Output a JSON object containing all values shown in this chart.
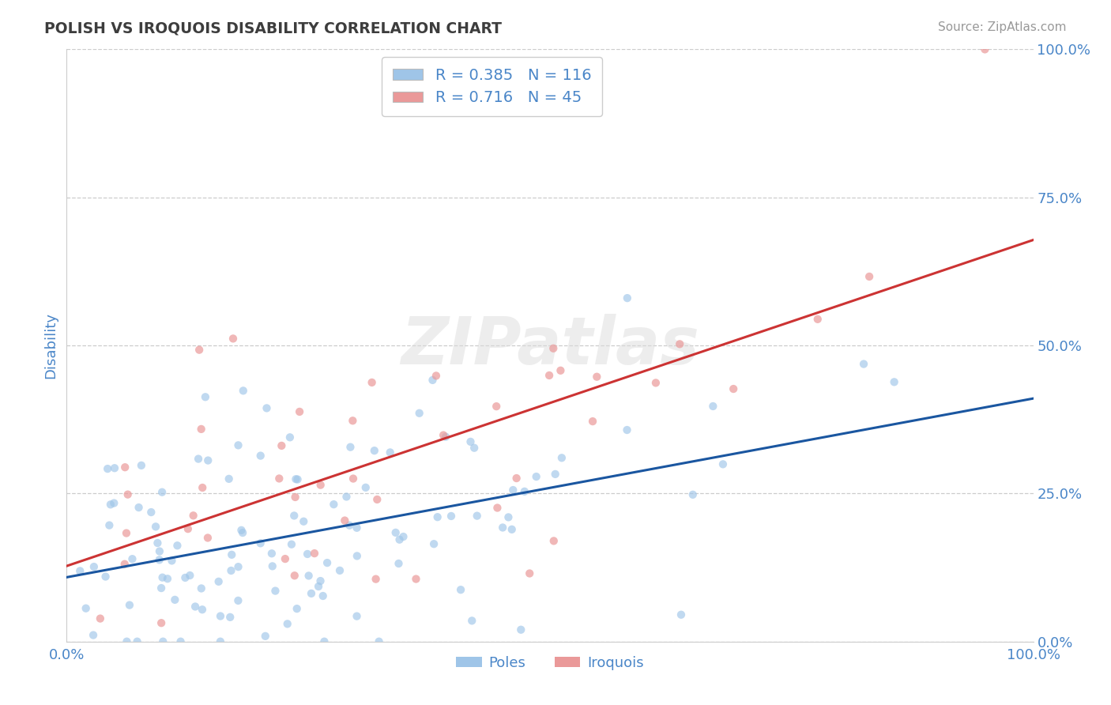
{
  "title": "POLISH VS IROQUOIS DISABILITY CORRELATION CHART",
  "source": "Source: ZipAtlas.com",
  "ylabel": "Disability",
  "xlim": [
    0.0,
    1.0
  ],
  "ylim": [
    0.0,
    1.0
  ],
  "yticks": [
    0.0,
    0.25,
    0.5,
    0.75,
    1.0
  ],
  "ytick_labels": [
    "0.0%",
    "25.0%",
    "50.0%",
    "75.0%",
    "100.0%"
  ],
  "xtick_labels": [
    "0.0%",
    "100.0%"
  ],
  "blue_scatter_color": "#9fc5e8",
  "pink_scatter_color": "#ea9999",
  "blue_line_color": "#1a56a0",
  "pink_line_color": "#cc3333",
  "blue_R": 0.385,
  "blue_N": 116,
  "pink_R": 0.716,
  "pink_N": 45,
  "watermark": "ZIPatlas",
  "title_color": "#3d3d3d",
  "tick_label_color": "#4a86c8",
  "ylabel_color": "#4a86c8",
  "grid_color": "#cccccc",
  "background_color": "#ffffff",
  "source_color": "#999999",
  "legend_text_color": "#4a86c8",
  "bottom_legend_labels": [
    "Poles",
    "Iroquois"
  ]
}
